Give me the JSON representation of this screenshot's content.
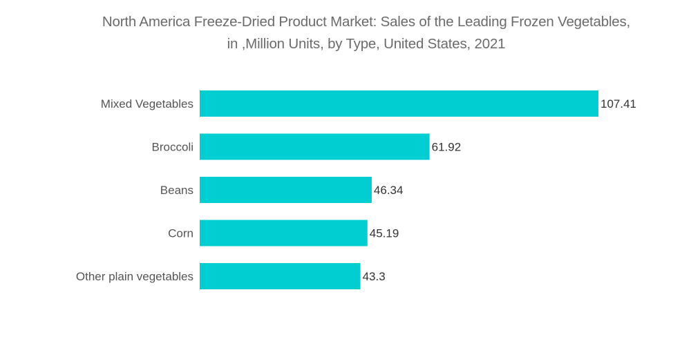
{
  "chart_data": {
    "type": "bar",
    "orientation": "horizontal",
    "title": "North America Freeze-Dried Product Market: Sales of the Leading Frozen Vegetables, in ,Million Units, by Type, United States, 2021",
    "title_lines": [
      "North America Freeze-Dried Product Market: Sales of the Leading Frozen Vegetables,",
      "in ,Million Units, by Type, United States, 2021"
    ],
    "categories": [
      "Mixed Vegetables",
      "Broccoli",
      "Beans",
      "Corn",
      "Other plain vegetables"
    ],
    "values": [
      107.41,
      61.92,
      46.34,
      45.19,
      43.3
    ],
    "value_labels": [
      "107.41",
      "61.92",
      "46.34",
      "45.19",
      "43.3"
    ],
    "xlabel": "",
    "ylabel": "",
    "xlim": [
      0,
      107.41
    ],
    "grid": false,
    "axes_visible": false,
    "legend": "none",
    "bar_color": "#00CED1"
  }
}
